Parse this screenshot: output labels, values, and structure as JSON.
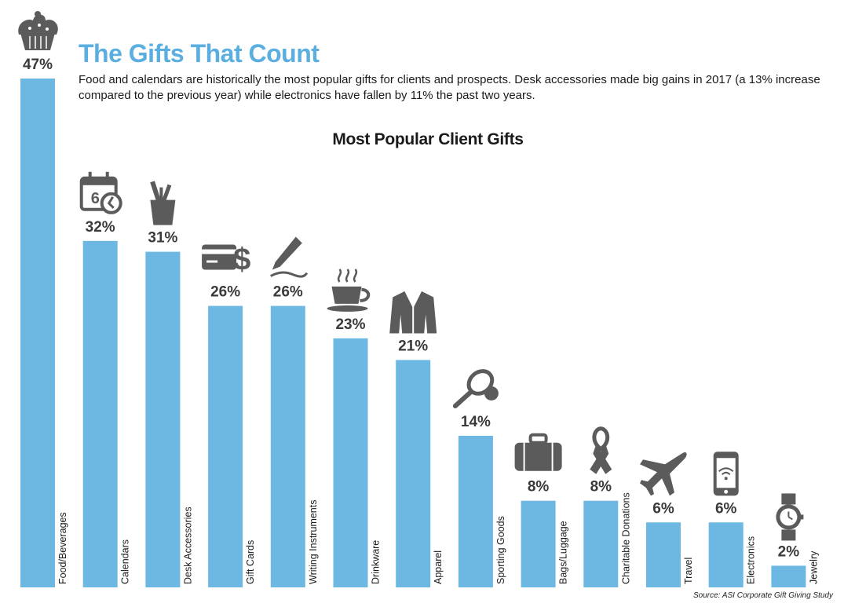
{
  "header": {
    "title": "The Gifts That Count",
    "subtitle": "Food and calendars are historically the most popular gifts for clients and prospects. Desk accessories made big gains in 2017 (a 13% increase compared to the previous year) while electronics have fallen by 11% the past two years."
  },
  "footer": {
    "source": "Source: ASI Corporate Gift Giving Study"
  },
  "colors": {
    "bar": "#6cb8e3",
    "icon": "#5b5b5b",
    "title": "#5aaee0"
  },
  "chart_data": {
    "type": "bar",
    "title": "Most Popular Client Gifts",
    "categories": [
      "Food/Beverages",
      "Calendars",
      "Desk Accessories",
      "Gift Cards",
      "Writing Instruments",
      "Drinkware",
      "Apparel",
      "Sporting Goods",
      "Bags/Luggage",
      "Charitable Donations",
      "Travel",
      "Electronics",
      "Jewelry"
    ],
    "values": [
      47,
      32,
      31,
      26,
      26,
      23,
      21,
      14,
      8,
      8,
      6,
      6,
      2
    ],
    "value_labels": [
      "47%",
      "32%",
      "31%",
      "26%",
      "26%",
      "23%",
      "21%",
      "14%",
      "8%",
      "8%",
      "6%",
      "6%",
      "2%"
    ],
    "icons": [
      "cupcake-icon",
      "calendar-clock-icon",
      "pencil-cup-icon",
      "gift-card-icon",
      "pencil-icon",
      "coffee-cup-icon",
      "jacket-icon",
      "tennis-racket-icon",
      "suitcase-icon",
      "ribbon-icon",
      "airplane-icon",
      "smartphone-icon",
      "wristwatch-icon"
    ],
    "ylim": [
      0,
      47
    ],
    "grid": false,
    "legend": "none"
  }
}
